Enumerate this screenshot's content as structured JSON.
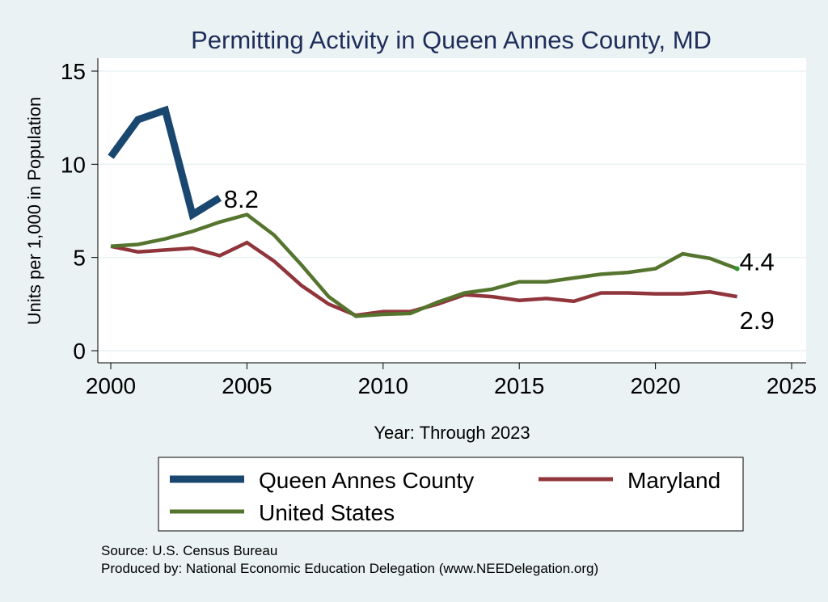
{
  "chart_data": {
    "type": "line",
    "title": "Permitting Activity in Queen Annes County, MD",
    "xlabel": "Year: Through 2023",
    "ylabel": "Units per 1,000 in Population",
    "xlim": [
      2000,
      2025
    ],
    "ylim": [
      0,
      15
    ],
    "xticks": [
      2000,
      2005,
      2010,
      2015,
      2020,
      2025
    ],
    "yticks": [
      0,
      5,
      10,
      15
    ],
    "grid": true,
    "legend_position": "bottom",
    "series": [
      {
        "name": "Queen Annes County",
        "color": "#1a476f",
        "x": [
          2000,
          2001,
          2002,
          2003,
          2004
        ],
        "y": [
          10.4,
          12.4,
          12.9,
          7.3,
          8.2
        ],
        "end_label": "8.2"
      },
      {
        "name": "Maryland",
        "color": "#90353b",
        "x": [
          2000,
          2001,
          2002,
          2003,
          2004,
          2005,
          2006,
          2007,
          2008,
          2009,
          2010,
          2011,
          2012,
          2013,
          2014,
          2015,
          2016,
          2017,
          2018,
          2019,
          2020,
          2021,
          2022,
          2023
        ],
        "y": [
          5.6,
          5.3,
          5.4,
          5.5,
          5.1,
          5.8,
          4.8,
          3.5,
          2.5,
          1.9,
          2.1,
          2.1,
          2.5,
          3.0,
          2.9,
          2.7,
          2.8,
          2.65,
          3.1,
          3.1,
          3.05,
          3.05,
          3.15,
          2.9
        ],
        "end_label": "2.9"
      },
      {
        "name": "United States",
        "color": "#55752f",
        "x": [
          2000,
          2001,
          2002,
          2003,
          2004,
          2005,
          2006,
          2007,
          2008,
          2009,
          2010,
          2011,
          2012,
          2013,
          2014,
          2015,
          2016,
          2017,
          2018,
          2019,
          2020,
          2021,
          2022,
          2023
        ],
        "y": [
          5.6,
          5.7,
          6.0,
          6.4,
          6.9,
          7.3,
          6.2,
          4.6,
          2.9,
          1.85,
          1.95,
          2.0,
          2.6,
          3.1,
          3.3,
          3.7,
          3.7,
          3.9,
          4.1,
          4.2,
          4.4,
          5.2,
          4.95,
          4.4
        ],
        "end_label": "4.4"
      }
    ]
  },
  "source": "Source: U.S. Census Bureau",
  "producer": "Produced by: National Economic Education Delegation (www.NEEDelegation.org)"
}
